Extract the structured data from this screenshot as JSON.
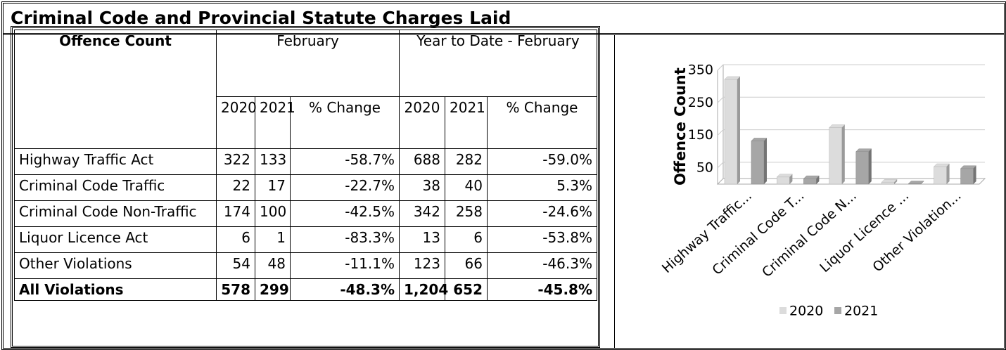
{
  "title": "Criminal Code and Provincial Statute Charges Laid",
  "table": {
    "header": {
      "label": "Offence Count",
      "groups": [
        "February",
        "Year to Date - February"
      ],
      "columns": [
        "2020",
        "2021",
        "% Change",
        "2020",
        "2021",
        "% Change"
      ]
    },
    "rows": [
      [
        "Highway Traffic Act",
        "322",
        "133",
        "-58.7%",
        "688",
        "282",
        "-59.0%"
      ],
      [
        "Criminal Code Traffic",
        "22",
        "17",
        "-22.7%",
        "38",
        "40",
        "5.3%"
      ],
      [
        "Criminal Code Non-Traffic",
        "174",
        "100",
        "-42.5%",
        "342",
        "258",
        "-24.6%"
      ],
      [
        "Liquor Licence Act",
        "6",
        "1",
        "-83.3%",
        "13",
        "6",
        "-53.8%"
      ],
      [
        "Other Violations",
        "54",
        "48",
        "-11.1%",
        "123",
        "66",
        "-46.3%"
      ]
    ],
    "total": [
      "All Violations",
      "578",
      "299",
      "-48.3%",
      "1,204",
      "652",
      "-45.8%"
    ]
  },
  "chart_data": {
    "type": "bar",
    "y_label": "Offence Count",
    "categories": [
      "Highway Traffic...",
      "Criminal Code T...",
      "Criminal Code N...",
      "Liquor Licence ...",
      "Other Violation..."
    ],
    "series": [
      {
        "name": "2020",
        "color": "#dcdcdc",
        "values": [
          322,
          22,
          174,
          6,
          54
        ]
      },
      {
        "name": "2021",
        "color": "#a6a6a6",
        "values": [
          133,
          17,
          100,
          1,
          48
        ]
      }
    ],
    "ylim": [
      0,
      350
    ],
    "yticks": [
      50,
      150,
      250,
      350
    ],
    "grid": true,
    "legend": "bottom"
  }
}
